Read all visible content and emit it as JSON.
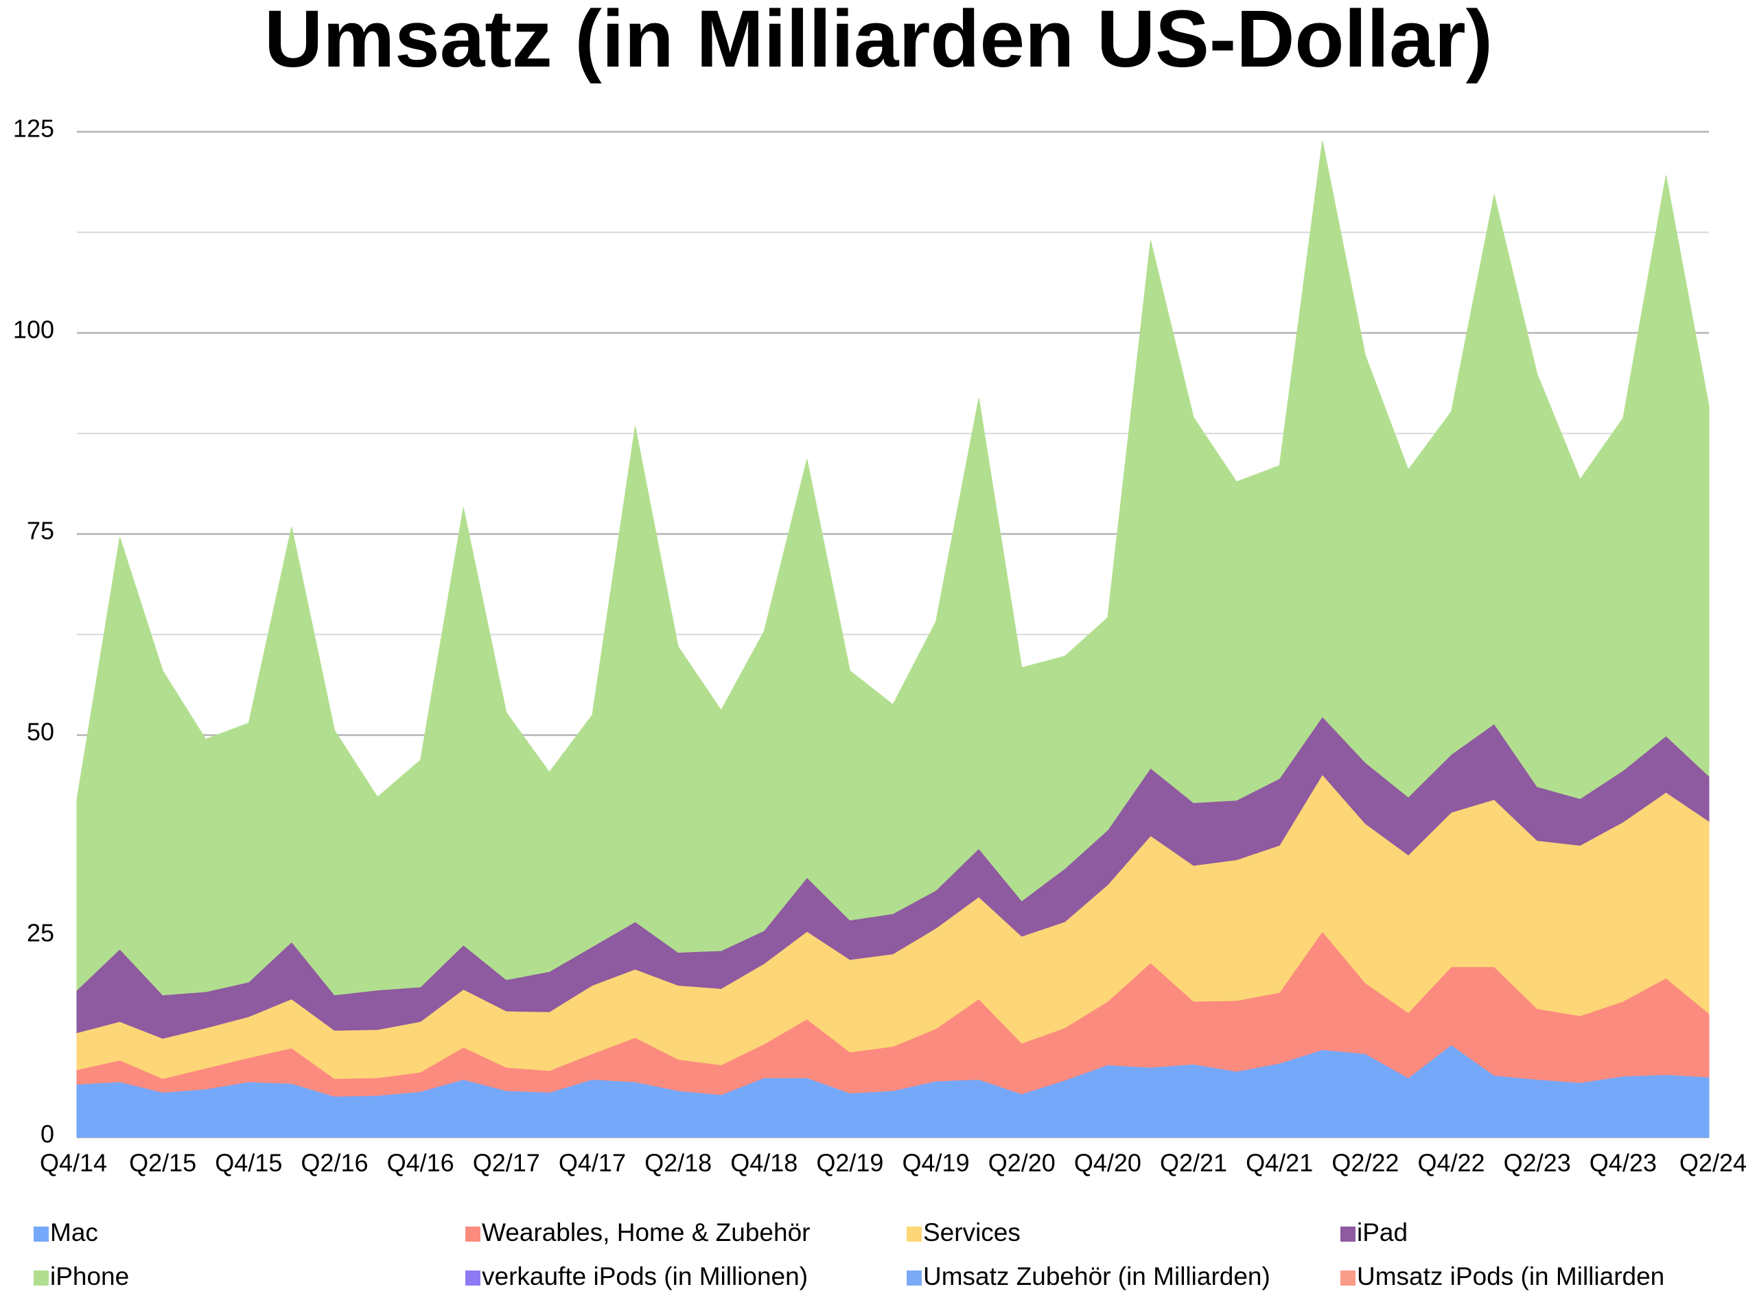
{
  "chart_data": {
    "type": "stacked_area",
    "title": "Umsatz (in Milliarden US-Dollar)",
    "categories": [
      "Q4/14",
      null,
      "Q2/15",
      null,
      "Q4/15",
      null,
      "Q2/16",
      null,
      "Q4/16",
      null,
      "Q2/17",
      null,
      "Q4/17",
      null,
      "Q2/18",
      null,
      "Q4/18",
      null,
      "Q2/19",
      null,
      "Q4/19",
      null,
      "Q2/20",
      null,
      "Q4/20",
      null,
      "Q2/21",
      null,
      "Q4/21",
      null,
      "Q2/22",
      null,
      "Q4/22",
      null,
      "Q2/23",
      null,
      "Q4/23",
      null,
      "Q2/24"
    ],
    "ylim": [
      0,
      125
    ],
    "yticks": [
      0,
      25,
      50,
      75,
      100,
      125
    ],
    "minor_yticks": [
      12.5,
      37.5,
      62.5,
      87.5,
      112.5
    ],
    "grid": true,
    "series": [
      {
        "name": "Mac",
        "color": "#76a8f9",
        "values": [
          6.6,
          6.9,
          5.6,
          6.0,
          6.9,
          6.7,
          5.1,
          5.2,
          5.7,
          7.2,
          5.8,
          5.6,
          7.2,
          6.9,
          5.8,
          5.3,
          7.4,
          7.4,
          5.5,
          5.8,
          7.0,
          7.2,
          5.4,
          7.1,
          9.0,
          8.7,
          9.1,
          8.2,
          9.2,
          10.9,
          10.4,
          7.4,
          11.5,
          7.7,
          7.2,
          6.8,
          7.6,
          7.8,
          7.5
        ]
      },
      {
        "name": "Wearables, Home & Zubehör",
        "color": "#fb8b7e",
        "values": [
          1.8,
          2.7,
          1.7,
          2.6,
          3.0,
          4.4,
          2.2,
          2.2,
          2.4,
          4.0,
          2.9,
          2.7,
          3.2,
          5.5,
          3.9,
          3.7,
          4.2,
          7.3,
          5.1,
          5.5,
          6.5,
          10.0,
          6.3,
          6.5,
          7.9,
          13.0,
          7.8,
          8.8,
          8.8,
          14.7,
          8.8,
          8.1,
          9.7,
          13.5,
          8.8,
          8.3,
          9.3,
          12.0,
          7.9
        ]
      },
      {
        "name": "Services",
        "color": "#fdd677",
        "values": [
          4.6,
          4.8,
          5.0,
          5.0,
          5.1,
          6.1,
          6.0,
          6.0,
          6.3,
          7.2,
          7.0,
          7.3,
          8.5,
          8.5,
          9.2,
          9.5,
          10.0,
          10.9,
          11.5,
          11.5,
          12.5,
          12.7,
          13.3,
          13.2,
          14.5,
          15.8,
          16.9,
          17.5,
          18.3,
          19.5,
          19.8,
          19.6,
          19.2,
          20.8,
          20.9,
          21.2,
          22.3,
          23.1,
          23.9
        ]
      },
      {
        "name": "iPad",
        "color": "#8e5aa0",
        "values": [
          5.3,
          9.0,
          5.4,
          4.5,
          4.3,
          7.1,
          4.4,
          4.9,
          4.3,
          5.5,
          3.9,
          5.0,
          4.8,
          5.9,
          4.1,
          4.7,
          4.1,
          6.7,
          4.9,
          5.0,
          4.7,
          6.0,
          4.4,
          6.6,
          6.8,
          8.4,
          7.8,
          7.4,
          8.3,
          7.2,
          7.6,
          7.2,
          7.2,
          9.4,
          6.7,
          5.8,
          6.4,
          7.0,
          5.6
        ]
      },
      {
        "name": "iPhone",
        "color": "#b2df8f",
        "values": [
          23.7,
          51.2,
          40.3,
          31.4,
          32.2,
          51.6,
          32.9,
          24.0,
          28.2,
          54.4,
          33.2,
          24.8,
          28.8,
          61.6,
          38.0,
          29.9,
          37.2,
          52.0,
          31.0,
          26.0,
          33.4,
          56.0,
          29.0,
          26.4,
          26.4,
          65.6,
          47.9,
          39.6,
          38.9,
          71.6,
          50.6,
          40.7,
          42.6,
          65.8,
          51.3,
          39.7,
          43.8,
          69.7,
          46.0
        ]
      },
      {
        "name": "verkaufte iPods (in Millionen)",
        "color": "#8e7af5",
        "values": [
          null,
          null,
          null,
          null,
          null,
          null,
          null,
          null,
          null,
          null,
          null,
          null,
          null,
          null,
          null,
          null,
          null,
          null,
          null,
          null,
          null,
          null,
          null,
          null,
          null,
          null,
          null,
          null,
          null,
          null,
          null,
          null,
          null,
          null,
          null,
          null,
          null,
          null,
          null
        ]
      },
      {
        "name": "Umsatz Zubehör (in Milliarden)",
        "color": "#7aaaf5",
        "values": [
          null,
          null,
          null,
          null,
          null,
          null,
          null,
          null,
          null,
          null,
          null,
          null,
          null,
          null,
          null,
          null,
          null,
          null,
          null,
          null,
          null,
          null,
          null,
          null,
          null,
          null,
          null,
          null,
          null,
          null,
          null,
          null,
          null,
          null,
          null,
          null,
          null,
          null,
          null
        ]
      },
      {
        "name": "Umsatz iPods (in Milliarden",
        "color": "#f99c8a",
        "values": [
          null,
          null,
          null,
          null,
          null,
          null,
          null,
          null,
          null,
          null,
          null,
          null,
          null,
          null,
          null,
          null,
          null,
          null,
          null,
          null,
          null,
          null,
          null,
          null,
          null,
          null,
          null,
          null,
          null,
          null,
          null,
          null,
          null,
          null,
          null,
          null,
          null,
          null,
          null
        ]
      }
    ]
  }
}
